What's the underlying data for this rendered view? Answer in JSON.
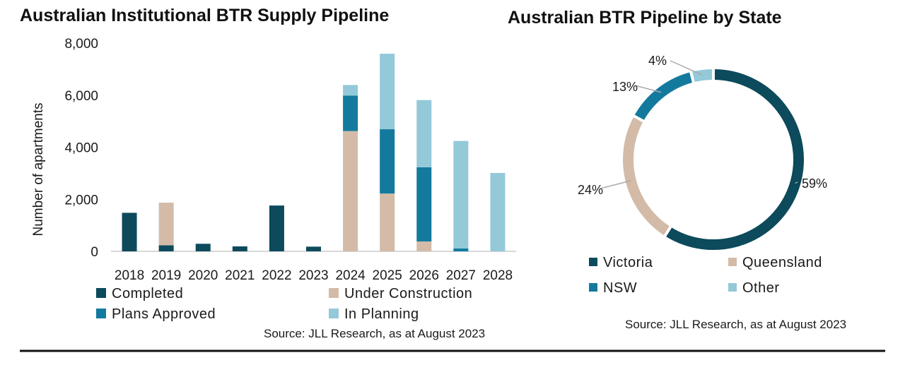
{
  "colors": {
    "completed": "#0c4a5c",
    "under_construction": "#d3bba8",
    "plans_approved": "#137a9e",
    "in_planning": "#93c9d9",
    "victoria": "#0c4a5c",
    "queensland": "#d3bba8",
    "nsw": "#137a9e",
    "other": "#93c9d9",
    "divider": "#111111"
  },
  "chart_data": [
    {
      "type": "bar",
      "stacked": true,
      "title": "Australian Institutional BTR Supply Pipeline",
      "xlabel": "",
      "ylabel": "Number of apartments",
      "ylim": [
        0,
        8000
      ],
      "yticks": [
        "0",
        "2,000",
        "4,000",
        "6,000",
        "8,000"
      ],
      "categories": [
        "2018",
        "2019",
        "2020",
        "2021",
        "2022",
        "2023",
        "2024",
        "2025",
        "2026",
        "2027",
        "2028"
      ],
      "series": [
        {
          "name": "Completed",
          "color_key": "completed",
          "values": [
            1480,
            230,
            290,
            190,
            1760,
            180,
            0,
            0,
            0,
            0,
            0
          ]
        },
        {
          "name": "Under Construction",
          "color_key": "under_construction",
          "values": [
            0,
            1640,
            0,
            0,
            0,
            0,
            4620,
            2220,
            380,
            0,
            0
          ]
        },
        {
          "name": "Plans Approved",
          "color_key": "plans_approved",
          "values": [
            0,
            0,
            0,
            0,
            0,
            0,
            1360,
            2470,
            2850,
            110,
            0
          ]
        },
        {
          "name": "In Planning",
          "color_key": "in_planning",
          "values": [
            0,
            0,
            0,
            0,
            0,
            0,
            410,
            2900,
            2580,
            4130,
            3010
          ]
        }
      ],
      "legend": [
        "Completed",
        "Under Construction",
        "Plans Approved",
        "In Planning"
      ],
      "legend_position": "bottom",
      "grid": false,
      "source": "Source:  JLL Research, as at August  2023"
    },
    {
      "type": "pie",
      "donut": true,
      "title": "Australian BTR Pipeline by State",
      "slices": [
        {
          "label": "Victoria",
          "value": 59,
          "text": "59%",
          "color_key": "victoria"
        },
        {
          "label": "Queensland",
          "value": 24,
          "text": "24%",
          "color_key": "queensland"
        },
        {
          "label": "NSW",
          "value": 13,
          "text": "13%",
          "color_key": "nsw"
        },
        {
          "label": "Other",
          "value": 4,
          "text": "4%",
          "color_key": "other"
        }
      ],
      "legend_position": "bottom",
      "source": "Source:  JLL Research, as at August  2023"
    }
  ]
}
